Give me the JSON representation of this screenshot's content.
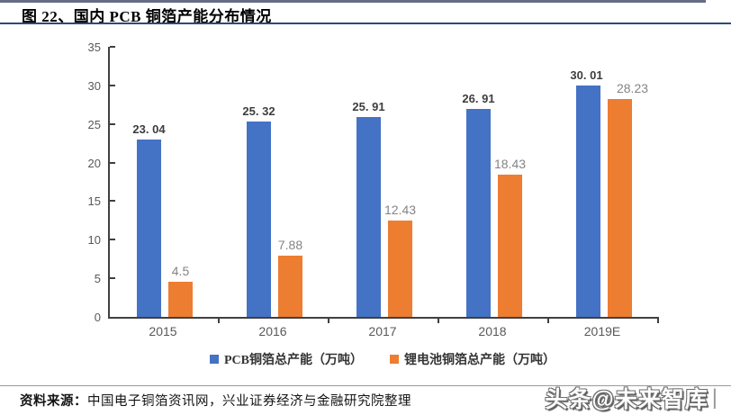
{
  "header": {
    "title": "图 22、国内 PCB 铜箔产能分布情况"
  },
  "colors": {
    "series_blue": "#4472C4",
    "series_orange": "#ED7D31",
    "axis_line": "#404040",
    "tick_label": "#595959",
    "title_rule": "#2e4b7a",
    "top_rule": "#666c85"
  },
  "chart_data": {
    "type": "bar",
    "categories": [
      "2015",
      "2016",
      "2017",
      "2018",
      "2019E"
    ],
    "series": [
      {
        "name": "PCB铜箔总产能（万吨）",
        "values": [
          23.04,
          25.32,
          25.91,
          26.91,
          30.01
        ],
        "labels": [
          "23. 04",
          "25. 32",
          "25. 91",
          "26. 91",
          "30. 01"
        ],
        "color": "#4472C4"
      },
      {
        "name": "锂电池铜箔总产能（万吨）",
        "values": [
          4.5,
          7.88,
          12.43,
          18.43,
          28.23
        ],
        "labels": [
          "4.5",
          "7.88",
          "12.43",
          "18.43",
          "28.23"
        ],
        "color": "#ED7D31"
      }
    ],
    "title": "国内 PCB 铜箔产能分布情况",
    "xlabel": "",
    "ylabel": "",
    "ylim": [
      0,
      35
    ],
    "yticks": [
      0,
      5,
      10,
      15,
      20,
      25,
      30,
      35
    ],
    "grid": false,
    "legend_position": "bottom",
    "data_labels": true
  },
  "footer": {
    "source_label": "资料来源：",
    "source_text": "中国电子铜箔资讯网，兴业证券经济与金融研究院整理"
  },
  "watermark": {
    "text": "头条@未来智库",
    "cursor": "|"
  }
}
